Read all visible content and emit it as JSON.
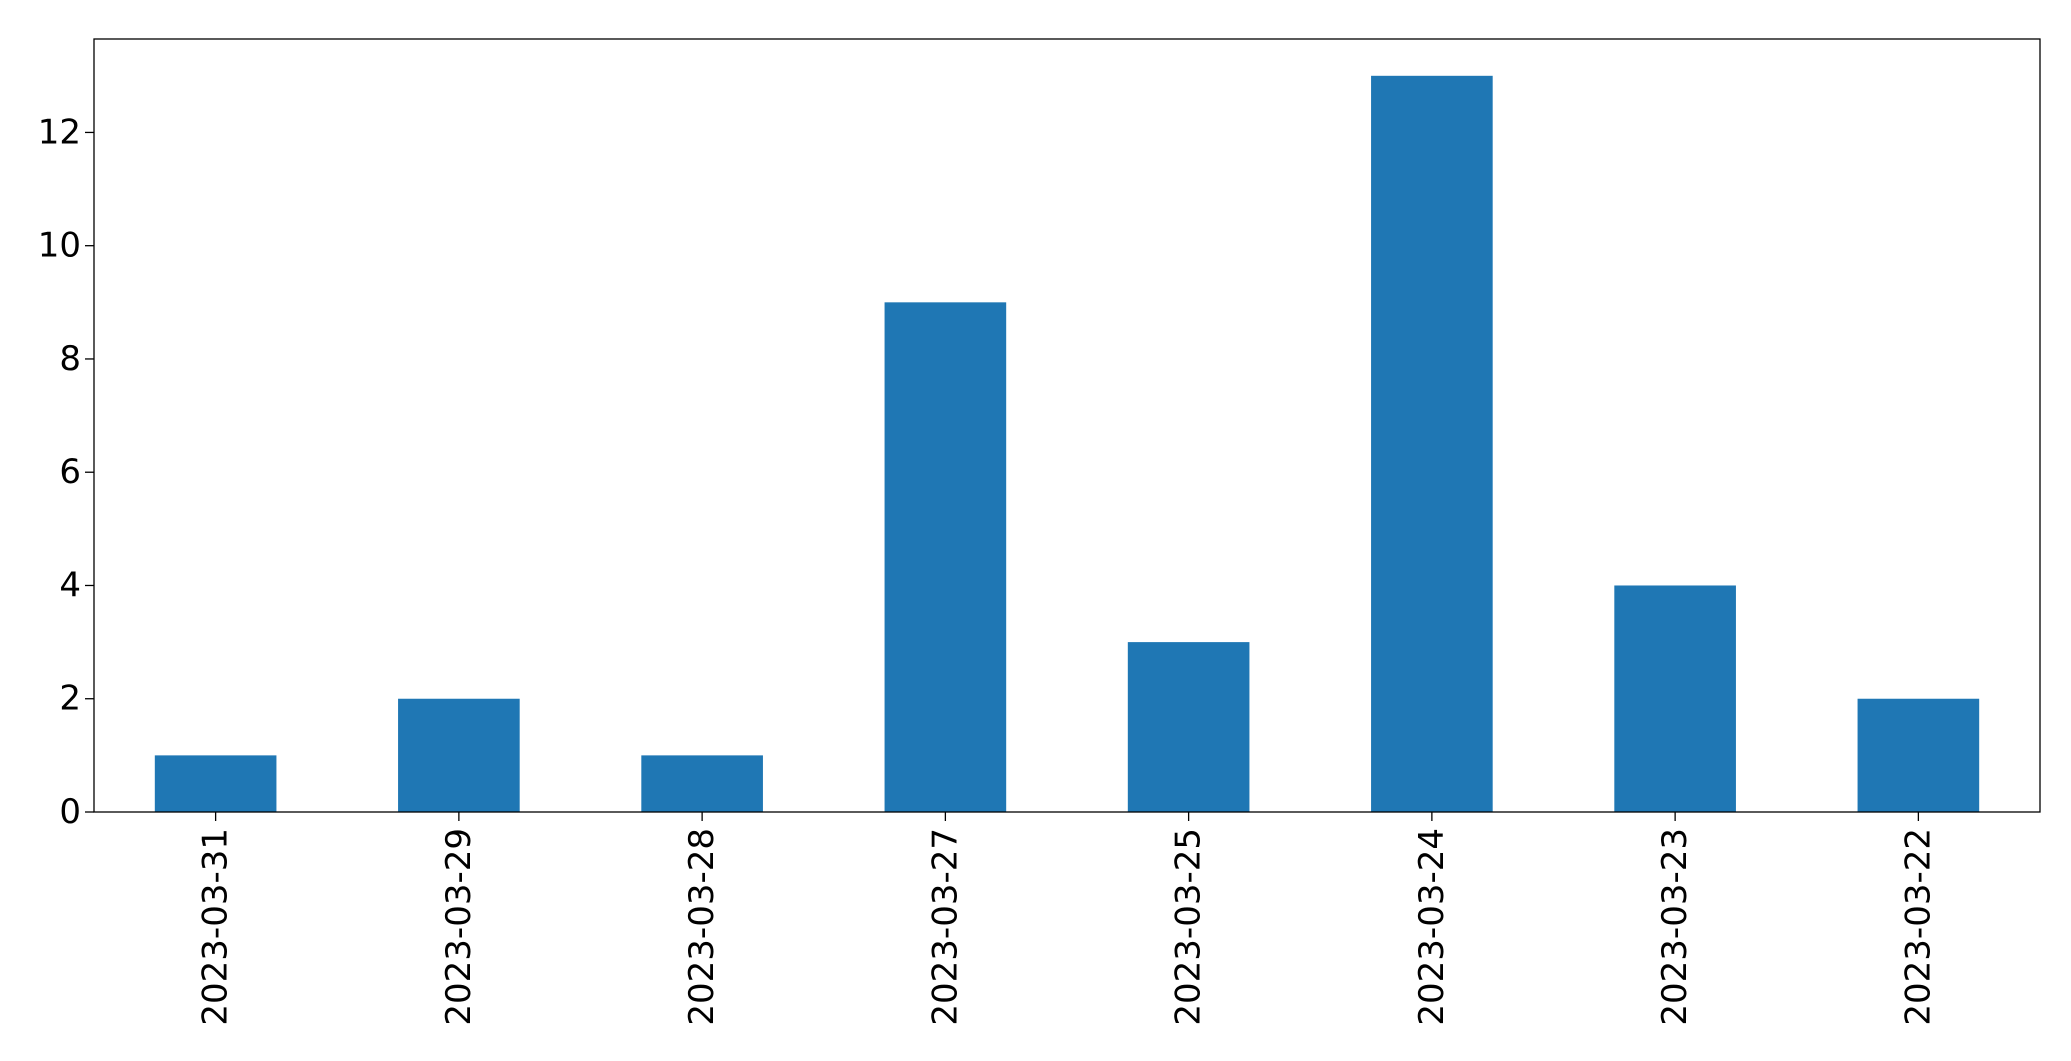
{
  "chart_data": {
    "type": "bar",
    "title": "",
    "xlabel": "",
    "ylabel": "",
    "categories": [
      "2023-03-31",
      "2023-03-29",
      "2023-03-28",
      "2023-03-27",
      "2023-03-25",
      "2023-03-24",
      "2023-03-23",
      "2023-03-22"
    ],
    "values": [
      1,
      2,
      1,
      9,
      3,
      13,
      4,
      2
    ],
    "ylim": [
      0,
      13.65
    ],
    "yticks": [
      0,
      2,
      4,
      6,
      8,
      10,
      12
    ],
    "ytick_labels": [
      "0",
      "2",
      "4",
      "6",
      "8",
      "10",
      "12"
    ],
    "grid": false,
    "legend": "none",
    "bar_color": "#1f77b4",
    "x_tick_rotation": "vertical"
  }
}
